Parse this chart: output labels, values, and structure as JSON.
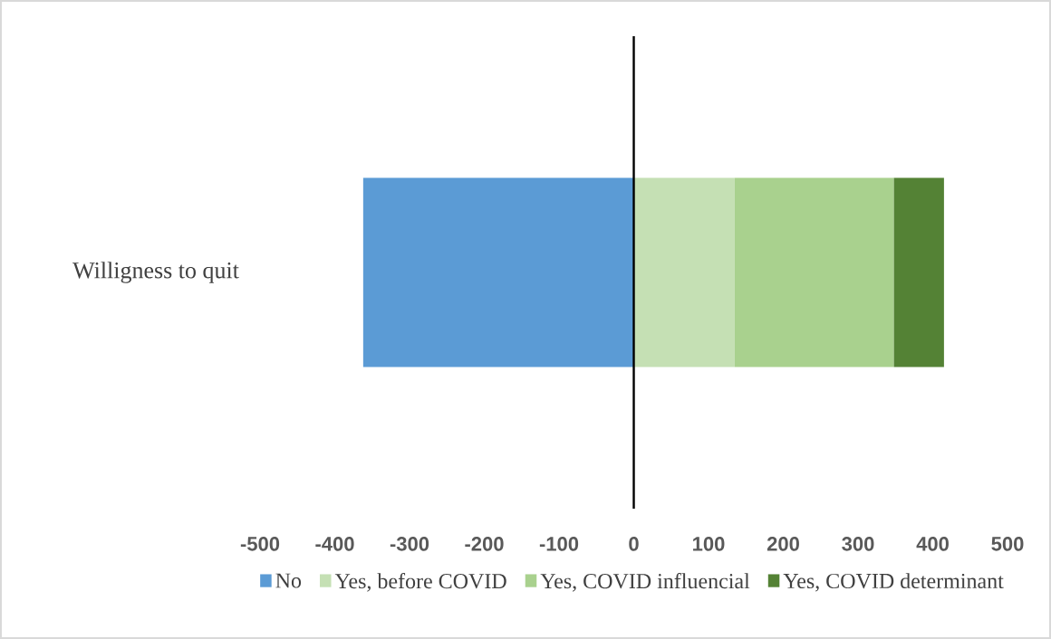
{
  "chart_data": {
    "type": "bar",
    "orientation": "horizontal",
    "stacked": true,
    "categories": [
      "Willigness to quit"
    ],
    "series": [
      {
        "name": "No",
        "color": "#5b9bd5",
        "values": [
          -362
        ]
      },
      {
        "name": "Yes, before COVID",
        "color": "#c5e0b4",
        "values": [
          135
        ]
      },
      {
        "name": "Yes, COVID influencial",
        "color": "#a9d18e",
        "values": [
          213
        ]
      },
      {
        "name": "Yes, COVID determinant",
        "color": "#548235",
        "values": [
          67
        ]
      }
    ],
    "xlim": [
      -500,
      500
    ],
    "xticks": [
      -500,
      -400,
      -300,
      -200,
      -100,
      0,
      100,
      200,
      300,
      400,
      500
    ],
    "legend": "bottom"
  }
}
